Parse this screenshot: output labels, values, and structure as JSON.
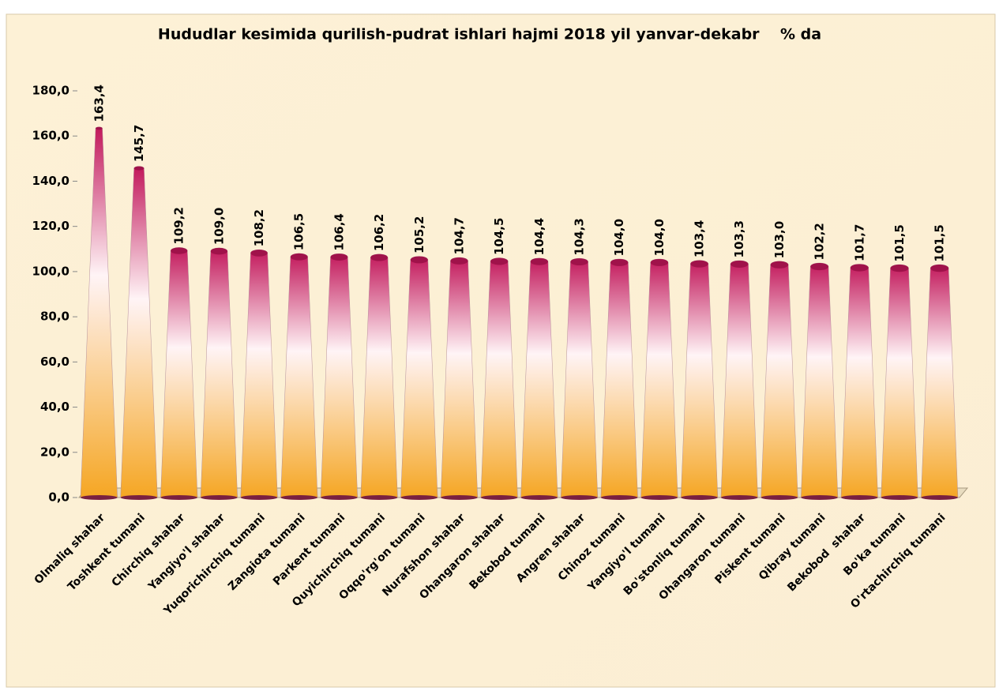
{
  "chart_data": {
    "type": "cone",
    "title": "Hududlar kesimida qurilish-pudrat ishlari hajmi 2018 yil yanvar-dekabr    % da",
    "categories": [
      "Olmaliq shahar",
      "Toshkent tumani",
      "Chirchiq shahar",
      "Yangiyo'l shahar",
      "Yuqorichirchiq tumani",
      "Zangiota tumani",
      "Parkent tumani",
      "Quyichirchiq tumani",
      "Oqqo'rg'on tumani",
      "Nurafshon shahar",
      "Ohangaron shahar",
      "Bekobod tumani",
      "Angren shahar",
      "Chinoz tumani",
      "Yangiyo'l tumani",
      "Bo'stonliq tumani",
      "Ohangaron tumani",
      "Piskent tumani",
      "Qibray tumani",
      "Bekobod  shahar",
      "Bo'ka tumani",
      "O'rtachirchiq tumani"
    ],
    "values": [
      163.4,
      145.7,
      109.2,
      109.0,
      108.2,
      106.5,
      106.4,
      106.2,
      105.2,
      104.7,
      104.5,
      104.4,
      104.3,
      104.0,
      104.0,
      103.4,
      103.3,
      103.0,
      102.2,
      101.7,
      101.5,
      101.5
    ],
    "value_labels": [
      "163,4",
      "145,7",
      "109,2",
      "109,0",
      "108,2",
      "106,5",
      "106,4",
      "106,2",
      "105,2",
      "104,7",
      "104,5",
      "104,4",
      "104,3",
      "104,0",
      "104,0",
      "103,4",
      "103,3",
      "103,0",
      "102,2",
      "101,7",
      "101,5",
      "101,5"
    ],
    "ylim": [
      0,
      180
    ],
    "yticks": [
      {
        "value": 0,
        "label": "0,0"
      },
      {
        "value": 20,
        "label": "20,0"
      },
      {
        "value": 40,
        "label": "40,0"
      },
      {
        "value": 60,
        "label": "60,0"
      },
      {
        "value": 80,
        "label": "80,0"
      },
      {
        "value": 100,
        "label": "100,0"
      },
      {
        "value": 120,
        "label": "120,0"
      },
      {
        "value": 140,
        "label": "140,0"
      },
      {
        "value": 160,
        "label": "160,0"
      },
      {
        "value": 180,
        "label": "180,0"
      }
    ],
    "colors": [
      "#f5a623",
      "#fff4f6",
      "#c2185b"
    ]
  }
}
